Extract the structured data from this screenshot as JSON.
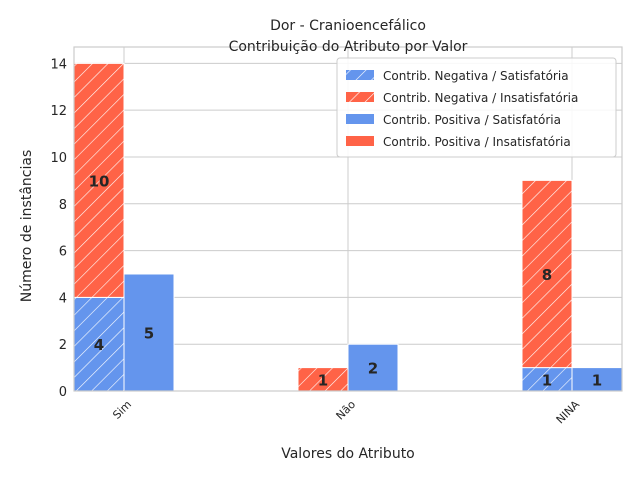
{
  "chart_data": {
    "type": "bar",
    "title": "Dor - Cranioencefálico",
    "subtitle": "Contribuição do Atributo por Valor",
    "xlabel": "Valores do Atributo",
    "ylabel": "Número de instâncias",
    "categories": [
      "Sim",
      "Não",
      "NINA"
    ],
    "ylim": [
      0,
      14.7
    ],
    "yticks": [
      0,
      2,
      4,
      6,
      8,
      10,
      12,
      14
    ],
    "grid": true,
    "legend_position": "top-right",
    "stacked_groups": [
      {
        "group": "Contrib. Negativa",
        "hatched": true,
        "series": [
          {
            "name": "Contrib. Negativa / Satisfatória",
            "color": "#6495ED",
            "values": [
              4,
              0,
              1
            ]
          },
          {
            "name": "Contrib. Negativa / Insatisfatória",
            "color": "#FF6347",
            "values": [
              10,
              1,
              8
            ]
          }
        ]
      },
      {
        "group": "Contrib. Positiva",
        "hatched": false,
        "series": [
          {
            "name": "Contrib. Positiva / Satisfatória",
            "color": "#6495ED",
            "values": [
              5,
              2,
              1
            ]
          },
          {
            "name": "Contrib. Positiva / Insatisfatória",
            "color": "#FF6347",
            "values": [
              0,
              0,
              0
            ]
          }
        ]
      }
    ]
  }
}
